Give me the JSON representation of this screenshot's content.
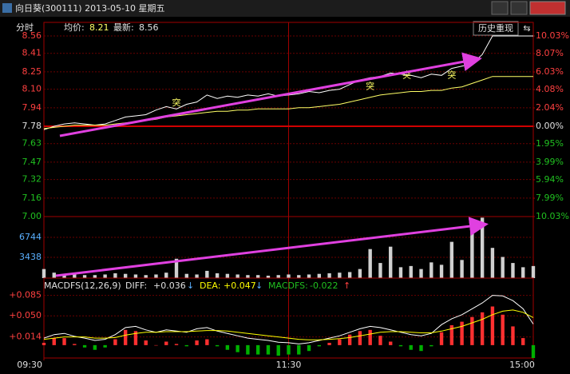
{
  "window": {
    "title": "向日葵(300111) 2013-05-10 星期五"
  },
  "header": {
    "mode": "分时",
    "avg_label": "均价:",
    "avg": "8.21",
    "last_label": "最新:",
    "last": "8.56",
    "button": "历史重现"
  },
  "chart_data": [
    {
      "type": "line",
      "x": [
        0,
        5,
        10,
        15,
        20,
        25,
        30,
        35,
        40,
        45,
        50,
        55,
        60,
        65,
        70,
        75,
        80,
        85,
        90,
        95,
        100,
        105,
        110,
        115,
        120,
        125,
        130,
        135,
        140,
        145,
        150,
        155,
        160,
        165,
        170,
        175,
        180,
        185,
        190,
        195,
        200,
        205,
        210,
        215,
        220,
        225,
        230,
        235,
        240
      ],
      "xlim": [
        0,
        240
      ],
      "ylim": [
        7,
        8.56
      ],
      "yticks": [
        8.56,
        8.41,
        8.25,
        {
          "value": 8.1,
          "label": "8.10"
        },
        7.94,
        7.78,
        7.63,
        7.47,
        7.32,
        7.16,
        {
          "value": 7,
          "label": "7.00"
        }
      ],
      "y2lim": [
        -10.03,
        10.03
      ],
      "y2ticks": [
        {
          "value": 10.03,
          "label": "10.03%"
        },
        {
          "value": 8.07,
          "label": "8.07%"
        },
        {
          "value": 6.03,
          "label": "6.03%"
        },
        {
          "value": 4.08,
          "label": "4.08%"
        },
        {
          "value": 2.04,
          "label": "2.04%"
        },
        {
          "value": 0,
          "label": "0.00%"
        },
        {
          "value": -1.95,
          "label": "1.95%"
        },
        {
          "value": -3.99,
          "label": "3.99%"
        },
        {
          "value": -5.94,
          "label": "5.94%"
        },
        {
          "value": -7.99,
          "label": "7.99%"
        },
        {
          "value": -10.03,
          "label": "10.03%"
        }
      ],
      "grid": true,
      "series": [
        {
          "color": "#ffffff",
          "values": [
            7.75,
            7.78,
            7.8,
            7.81,
            7.8,
            7.79,
            7.8,
            7.83,
            7.86,
            7.87,
            7.88,
            7.92,
            7.95,
            7.93,
            7.97,
            7.99,
            8.05,
            8.02,
            8.04,
            8.03,
            8.05,
            8.04,
            8.06,
            8.04,
            8.05,
            8.06,
            8.08,
            8.07,
            8.09,
            8.1,
            8.14,
            8.18,
            8.2,
            8.21,
            8.24,
            8.23,
            8.22,
            8.2,
            8.23,
            8.22,
            8.28,
            8.3,
            8.32,
            8.4,
            8.56,
            8.56,
            8.56,
            8.56,
            8.56
          ]
        },
        {
          "color": "#ffff66",
          "values": [
            7.76,
            7.77,
            7.78,
            7.79,
            7.79,
            7.79,
            7.79,
            7.8,
            7.81,
            7.82,
            7.83,
            7.84,
            7.86,
            7.87,
            7.88,
            7.89,
            7.9,
            7.91,
            7.91,
            7.92,
            7.92,
            7.93,
            7.93,
            7.93,
            7.93,
            7.94,
            7.94,
            7.95,
            7.96,
            7.97,
            7.99,
            8.01,
            8.03,
            8.05,
            8.06,
            8.07,
            8.08,
            8.08,
            8.09,
            8.09,
            8.11,
            8.12,
            8.15,
            8.18,
            8.21,
            8.21,
            8.21,
            8.21,
            8.21
          ]
        }
      ],
      "annotations": [
        {
          "x": 65,
          "y": 7.98,
          "text": "突"
        },
        {
          "x": 160,
          "y": 8.12,
          "text": "突"
        },
        {
          "x": 178,
          "y": 8.22,
          "text": "突"
        },
        {
          "x": 200,
          "y": 8.22,
          "text": "突"
        }
      ]
    },
    {
      "type": "bar",
      "x": [
        0,
        5,
        10,
        15,
        20,
        25,
        30,
        35,
        40,
        45,
        50,
        55,
        60,
        65,
        70,
        75,
        80,
        85,
        90,
        95,
        100,
        105,
        110,
        115,
        120,
        125,
        130,
        135,
        140,
        145,
        150,
        155,
        160,
        165,
        170,
        175,
        180,
        185,
        190,
        195,
        200,
        205,
        210,
        215,
        220,
        225,
        230,
        235,
        240
      ],
      "xlim": [
        0,
        240
      ],
      "ylim": [
        0,
        10180
      ],
      "yticks": [
        6744,
        3438
      ],
      "grid": true,
      "color": "#d0d0d0",
      "values": [
        1500,
        900,
        700,
        600,
        500,
        500,
        600,
        800,
        700,
        600,
        500,
        600,
        900,
        3200,
        700,
        600,
        1200,
        800,
        700,
        600,
        500,
        500,
        400,
        500,
        600,
        500,
        600,
        700,
        800,
        900,
        1000,
        1500,
        4800,
        2500,
        5200,
        1800,
        2000,
        1500,
        2600,
        2200,
        6000,
        3000,
        7800,
        10000,
        5000,
        3500,
        2500,
        1800,
        2000
      ]
    },
    {
      "type": "macd",
      "header": {
        "name": "MACDFS(12,26,9)",
        "diff_label": "DIFF:",
        "diff": "+0.036",
        "diff_arrow": "↓",
        "dea_label": "DEA:",
        "dea": "+0.047",
        "dea_arrow": "↓",
        "macd_label": "MACDFS:",
        "macd": "-0.022",
        "macd_arrow": "↑"
      },
      "x": [
        0,
        5,
        10,
        15,
        20,
        25,
        30,
        35,
        40,
        45,
        50,
        55,
        60,
        65,
        70,
        75,
        80,
        85,
        90,
        95,
        100,
        105,
        110,
        115,
        120,
        125,
        130,
        135,
        140,
        145,
        150,
        155,
        160,
        165,
        170,
        175,
        180,
        185,
        190,
        195,
        200,
        205,
        210,
        215,
        220,
        225,
        230,
        235,
        240
      ],
      "xlim": [
        0,
        240
      ],
      "xticks": [
        {
          "value": 0,
          "label": "09:30"
        },
        {
          "value": 120,
          "label": "11:30"
        },
        {
          "value": 240,
          "label": "15:00"
        }
      ],
      "ylim": [
        -0.022,
        0.094
      ],
      "yticks": [
        {
          "value": 0.085,
          "label": "+0.085"
        },
        {
          "value": 0.05,
          "label": "+0.050"
        },
        {
          "value": 0.014,
          "label": "+0.014"
        }
      ],
      "grid": true,
      "series": [
        {
          "color": "#ffffff",
          "values": [
            0.012,
            0.018,
            0.02,
            0.015,
            0.012,
            0.008,
            0.01,
            0.018,
            0.03,
            0.032,
            0.026,
            0.022,
            0.026,
            0.024,
            0.022,
            0.028,
            0.03,
            0.024,
            0.02,
            0.016,
            0.012,
            0.01,
            0.008,
            0.005,
            0.004,
            0.002,
            0.004,
            0.008,
            0.012,
            0.016,
            0.022,
            0.028,
            0.032,
            0.03,
            0.026,
            0.022,
            0.018,
            0.016,
            0.02,
            0.035,
            0.045,
            0.052,
            0.062,
            0.072,
            0.085,
            0.084,
            0.076,
            0.062,
            0.036
          ]
        },
        {
          "color": "#ffff00",
          "values": [
            0.01,
            0.012,
            0.014,
            0.014,
            0.014,
            0.012,
            0.012,
            0.013,
            0.017,
            0.02,
            0.022,
            0.022,
            0.023,
            0.023,
            0.023,
            0.024,
            0.025,
            0.025,
            0.024,
            0.022,
            0.02,
            0.018,
            0.016,
            0.014,
            0.012,
            0.01,
            0.009,
            0.009,
            0.01,
            0.011,
            0.013,
            0.016,
            0.019,
            0.022,
            0.023,
            0.023,
            0.022,
            0.021,
            0.021,
            0.024,
            0.028,
            0.032,
            0.038,
            0.044,
            0.052,
            0.058,
            0.06,
            0.056,
            0.047
          ]
        },
        {
          "type": "bar",
          "color_up": "#ff3030",
          "color_down": "#00b000",
          "values": [
            0.004,
            0.012,
            0.012,
            0.002,
            -0.004,
            -0.008,
            -0.004,
            0.01,
            0.026,
            0.024,
            0.008,
            0.0,
            0.006,
            0.002,
            -0.002,
            0.008,
            0.01,
            -0.002,
            -0.008,
            -0.012,
            -0.016,
            -0.016,
            -0.016,
            -0.018,
            -0.016,
            -0.016,
            -0.01,
            -0.002,
            0.004,
            0.01,
            0.018,
            0.024,
            0.026,
            0.016,
            0.006,
            -0.002,
            -0.008,
            -0.01,
            -0.002,
            0.022,
            0.034,
            0.04,
            0.048,
            0.056,
            0.066,
            0.052,
            0.032,
            0.012,
            -0.022
          ]
        }
      ]
    }
  ]
}
